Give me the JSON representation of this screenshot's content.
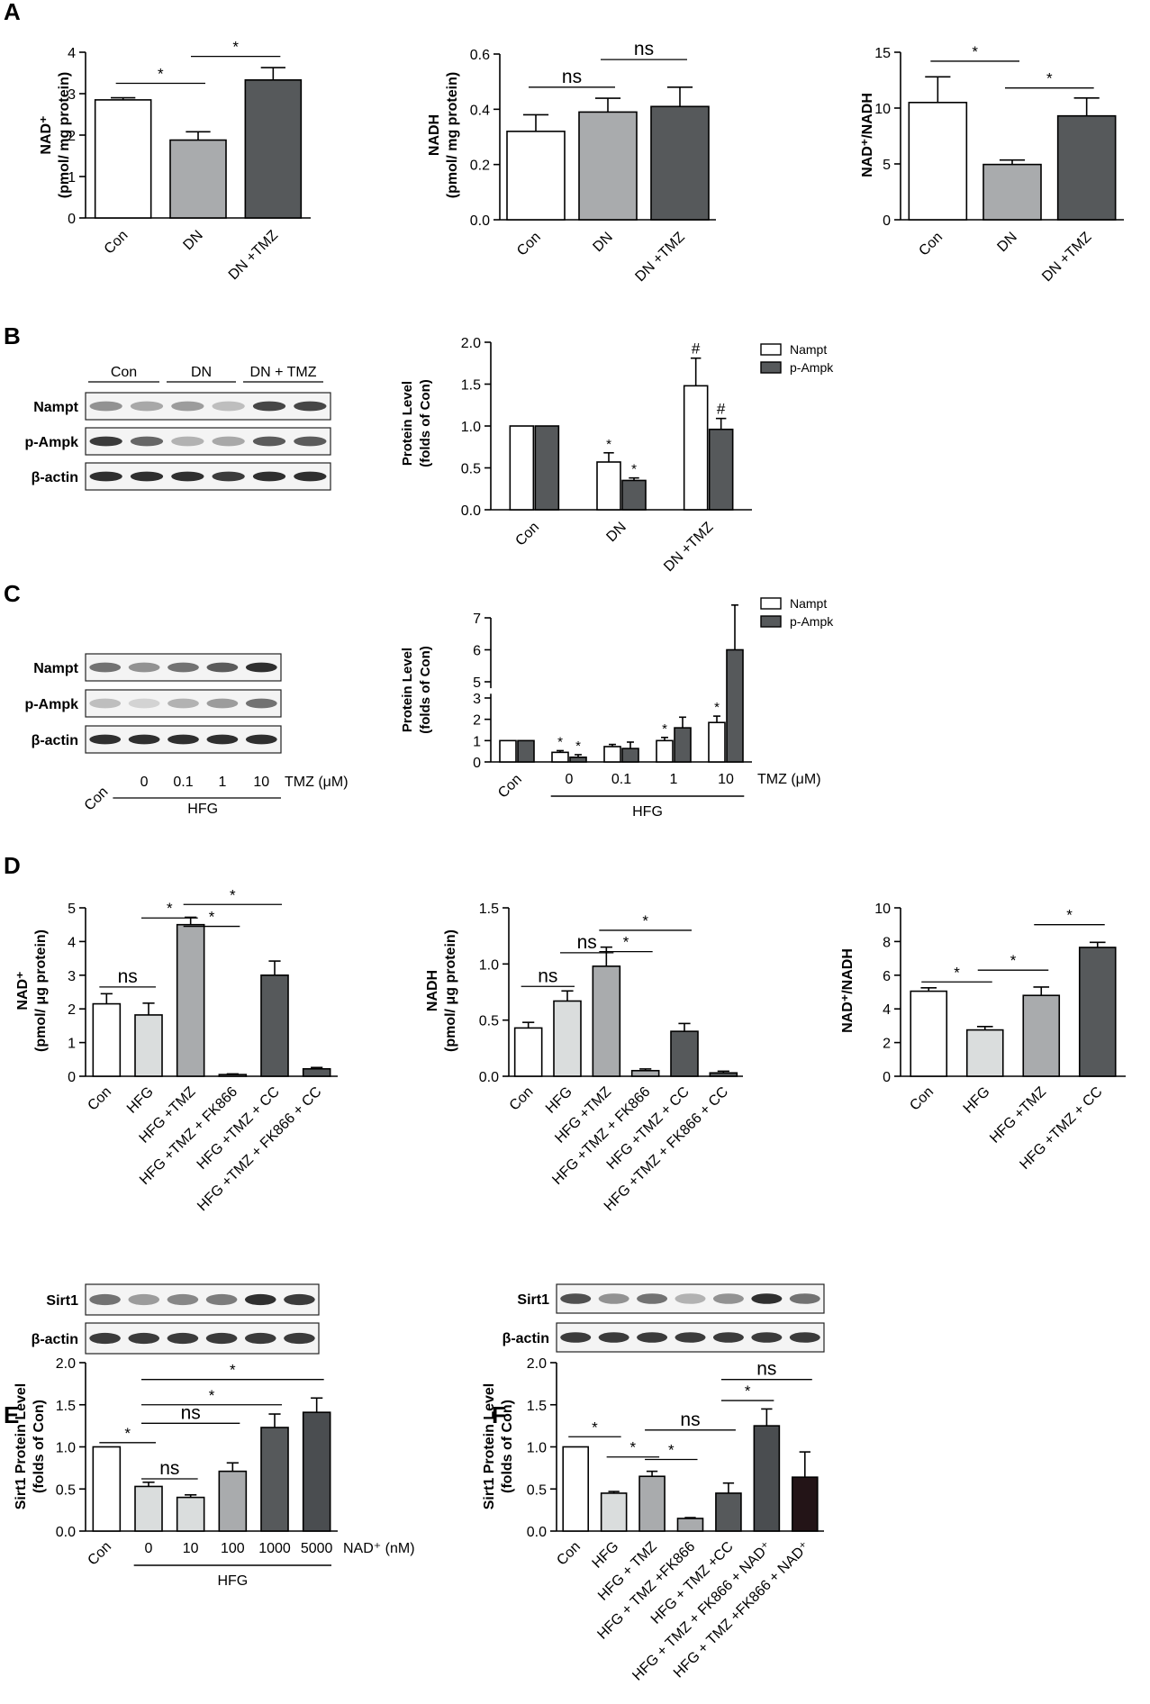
{
  "colors": {
    "white": "#ffffff",
    "light": "#dadddd",
    "mid": "#a9abad",
    "dark": "#56595b",
    "darker": "#4a4d50",
    "black": "#231417"
  },
  "panel_letters": [
    "A",
    "B",
    "C",
    "D",
    "E",
    "F"
  ],
  "blots": [
    {
      "id": "B",
      "groups": [
        "Con",
        "DN",
        "DN + TMZ"
      ],
      "rows": [
        "Nampt",
        "p-Ampk",
        "β-actin"
      ],
      "band_levels": [
        [
          0.45,
          0.35,
          0.4,
          0.25,
          0.8,
          0.8
        ],
        [
          0.85,
          0.65,
          0.3,
          0.35,
          0.7,
          0.7
        ],
        [
          0.9,
          0.9,
          0.9,
          0.85,
          0.9,
          0.9
        ]
      ]
    },
    {
      "id": "C",
      "rows": [
        "Nampt",
        "p-Ampk",
        "β-actin"
      ],
      "lanes": [
        "Con",
        "0",
        "0.1",
        "1",
        "10"
      ],
      "unit": "TMZ (μM)",
      "group": "HFG",
      "band_levels": [
        [
          0.6,
          0.45,
          0.6,
          0.7,
          0.9
        ],
        [
          0.25,
          0.15,
          0.3,
          0.4,
          0.6
        ],
        [
          0.9,
          0.9,
          0.9,
          0.9,
          0.9
        ]
      ]
    },
    {
      "id": "E",
      "rows": [
        "Sirt1",
        "β-actin"
      ],
      "band_levels": [
        [
          0.6,
          0.4,
          0.5,
          0.55,
          0.9,
          0.85
        ],
        [
          0.85,
          0.85,
          0.85,
          0.85,
          0.85,
          0.85
        ]
      ]
    },
    {
      "id": "F",
      "rows": [
        "Sirt1",
        "β-actin"
      ],
      "band_levels": [
        [
          0.75,
          0.45,
          0.6,
          0.3,
          0.45,
          0.9,
          0.6
        ],
        [
          0.85,
          0.85,
          0.85,
          0.85,
          0.85,
          0.85,
          0.85
        ]
      ]
    }
  ],
  "chart_data": [
    {
      "id": "A1",
      "type": "bar",
      "ylabel": "NAD⁺",
      "ylabel2": "(pmol/ mg protein)",
      "ylim": [
        0,
        4
      ],
      "yticks": [
        "0",
        "1",
        "2",
        "3",
        "4"
      ],
      "categories": [
        "Con",
        "DN",
        "DN +TMZ"
      ],
      "values": [
        2.85,
        1.88,
        3.33
      ],
      "errors": [
        0.05,
        0.2,
        0.3
      ],
      "colors": [
        "white",
        "mid",
        "dark"
      ],
      "sig": [
        {
          "label": "*",
          "from": 0,
          "to": 1,
          "y": 3.25
        },
        {
          "label": "*",
          "from": 1,
          "to": 2,
          "y": 3.9
        }
      ]
    },
    {
      "id": "A2",
      "type": "bar",
      "ylabel": "NADH",
      "ylabel2": "(pmol/ mg protein)",
      "ylim": [
        0,
        0.6
      ],
      "yticks": [
        "0.0",
        "0.2",
        "0.4",
        "0.6"
      ],
      "categories": [
        "Con",
        "DN",
        "DN +TMZ"
      ],
      "values": [
        0.32,
        0.39,
        0.41
      ],
      "errors": [
        0.06,
        0.05,
        0.07
      ],
      "colors": [
        "white",
        "mid",
        "dark"
      ],
      "sig": [
        {
          "label": "ns",
          "from": 0,
          "to": 1,
          "y": 0.48
        },
        {
          "label": "ns",
          "from": 1,
          "to": 2,
          "y": 0.58
        }
      ]
    },
    {
      "id": "A3",
      "type": "bar",
      "ylabel": "NAD⁺/NADH",
      "ylim": [
        0,
        15
      ],
      "yticks": [
        "0",
        "5",
        "10",
        "15"
      ],
      "categories": [
        "Con",
        "DN",
        "DN +TMZ"
      ],
      "values": [
        10.5,
        4.95,
        9.3
      ],
      "errors": [
        2.3,
        0.4,
        1.6
      ],
      "colors": [
        "white",
        "mid",
        "dark"
      ],
      "sig": [
        {
          "label": "*",
          "from": 0,
          "to": 1,
          "y": 14.2
        },
        {
          "label": "*",
          "from": 1,
          "to": 2,
          "y": 11.8
        }
      ]
    },
    {
      "id": "B",
      "type": "bar",
      "ylabel": "Protein Level",
      "ylabel2": "(folds of Con)",
      "ylim": [
        0,
        2
      ],
      "yticks": [
        "0.0",
        "0.5",
        "1.0",
        "1.5",
        "2.0"
      ],
      "categories": [
        "Con",
        "DN",
        "DN +TMZ"
      ],
      "series": [
        {
          "name": "Nampt",
          "values": [
            1.0,
            0.57,
            1.48
          ],
          "errors": [
            0,
            0.11,
            0.33
          ],
          "marks": [
            "",
            "*",
            "#"
          ],
          "color": "white"
        },
        {
          "name": "p-Ampk",
          "values": [
            1.0,
            0.35,
            0.96
          ],
          "errors": [
            0,
            0.03,
            0.13
          ],
          "marks": [
            "",
            "*",
            "#"
          ],
          "color": "dark"
        }
      ]
    },
    {
      "id": "C",
      "type": "bar",
      "ylabel": "Protein Level",
      "ylabel2": "(folds of Con)",
      "ylim": [
        0,
        7
      ],
      "yticks": [
        "0",
        "1",
        "2",
        "3",
        "5",
        "6",
        "7"
      ],
      "categories": [
        "Con",
        "0",
        "0.1",
        "1",
        "10"
      ],
      "xunit": "TMZ (μM)",
      "group": "HFG",
      "series": [
        {
          "name": "Nampt",
          "values": [
            1.0,
            0.45,
            0.72,
            1.0,
            1.85
          ],
          "errors": [
            0,
            0.08,
            0.1,
            0.15,
            0.3
          ],
          "marks": [
            "",
            "*",
            "",
            "*",
            "*"
          ],
          "color": "white"
        },
        {
          "name": "p-Ampk",
          "values": [
            1.0,
            0.22,
            0.63,
            1.6,
            6.0
          ],
          "errors": [
            0,
            0.12,
            0.3,
            0.5,
            1.4
          ],
          "marks": [
            "",
            "*",
            "",
            "",
            ""
          ],
          "color": "dark"
        }
      ]
    },
    {
      "id": "D1",
      "type": "bar",
      "ylabel": "NAD⁺",
      "ylabel2": "(pmol/ μg protein)",
      "ylim": [
        0,
        5
      ],
      "yticks": [
        "0",
        "1",
        "2",
        "3",
        "4",
        "5"
      ],
      "categories": [
        "Con",
        "HFG",
        "HFG +TMZ",
        "HFG +TMZ + FK866",
        "HFG +TMZ + CC",
        "HFG +TMZ + FK866 + CC"
      ],
      "values": [
        2.15,
        1.82,
        4.5,
        0.05,
        3.0,
        0.22
      ],
      "errors": [
        0.3,
        0.35,
        0.22,
        0.02,
        0.42,
        0.04
      ],
      "colors": [
        "white",
        "light",
        "mid",
        "mid",
        "dark",
        "dark"
      ],
      "sig": [
        {
          "label": "ns",
          "from": 0,
          "to": 1,
          "y": 2.65
        },
        {
          "label": "*",
          "from": 1,
          "to": 2,
          "y": 4.7
        },
        {
          "label": "*",
          "from": 2,
          "to": 3,
          "y": 4.45
        },
        {
          "label": "*",
          "from": 2,
          "to": 4,
          "y": 5.1
        }
      ]
    },
    {
      "id": "D2",
      "type": "bar",
      "ylabel": "NADH",
      "ylabel2": "(pmol/ μg protein)",
      "ylim": [
        0,
        1.5
      ],
      "yticks": [
        "0.0",
        "0.5",
        "1.0",
        "1.5"
      ],
      "categories": [
        "Con",
        "HFG",
        "HFG +TMZ",
        "HFG +TMZ + FK866",
        "HFG +TMZ + CC",
        "HFG +TMZ + FK866 + CC"
      ],
      "values": [
        0.43,
        0.67,
        0.98,
        0.05,
        0.4,
        0.03
      ],
      "errors": [
        0.05,
        0.09,
        0.17,
        0.015,
        0.07,
        0.015
      ],
      "colors": [
        "white",
        "light",
        "mid",
        "mid",
        "dark",
        "dark"
      ],
      "sig": [
        {
          "label": "ns",
          "from": 0,
          "to": 1,
          "y": 0.8
        },
        {
          "label": "ns",
          "from": 1,
          "to": 2,
          "y": 1.1
        },
        {
          "label": "*",
          "from": 2,
          "to": 3,
          "y": 1.11
        },
        {
          "label": "*",
          "from": 2,
          "to": 4,
          "y": 1.3
        }
      ]
    },
    {
      "id": "D3",
      "type": "bar",
      "ylabel": "NAD⁺/NADH",
      "ylim": [
        0,
        10
      ],
      "yticks": [
        "0",
        "2",
        "4",
        "6",
        "8",
        "10"
      ],
      "categories": [
        "Con",
        "HFG",
        "HFG +TMZ",
        "HFG +TMZ + CC"
      ],
      "values": [
        5.05,
        2.75,
        4.8,
        7.65
      ],
      "errors": [
        0.2,
        0.2,
        0.5,
        0.3
      ],
      "colors": [
        "white",
        "light",
        "mid",
        "dark"
      ],
      "sig": [
        {
          "label": "*",
          "from": 0,
          "to": 1,
          "y": 5.6
        },
        {
          "label": "*",
          "from": 1,
          "to": 2,
          "y": 6.3
        },
        {
          "label": "*",
          "from": 2,
          "to": 3,
          "y": 9.0
        }
      ]
    },
    {
      "id": "E",
      "type": "bar",
      "ylabel": "Sirt1 Protein Level",
      "ylabel2": "(folds of Con)",
      "ylim": [
        0,
        2
      ],
      "yticks": [
        "0.0",
        "0.5",
        "1.0",
        "1.5",
        "2.0"
      ],
      "categories": [
        "Con",
        "0",
        "10",
        "100",
        "1000",
        "5000"
      ],
      "xunit": "NAD⁺ (nM)",
      "group": "HFG",
      "values": [
        1.0,
        0.53,
        0.4,
        0.71,
        1.23,
        1.41
      ],
      "errors": [
        0,
        0.05,
        0.03,
        0.1,
        0.16,
        0.17
      ],
      "colors": [
        "white",
        "light",
        "light",
        "mid",
        "dark",
        "darker"
      ],
      "sig": [
        {
          "label": "*",
          "from": 0,
          "to": 1,
          "y": 1.05
        },
        {
          "label": "ns",
          "from": 1,
          "to": 2,
          "y": 0.62
        },
        {
          "label": "ns",
          "from": 1,
          "to": 3,
          "y": 1.28
        },
        {
          "label": "*",
          "from": 1,
          "to": 4,
          "y": 1.5
        },
        {
          "label": "*",
          "from": 1,
          "to": 5,
          "y": 1.8
        }
      ]
    },
    {
      "id": "F",
      "type": "bar",
      "ylabel": "Sirt1 Protein Level",
      "ylabel2": "(folds of Con)",
      "ylim": [
        0,
        2
      ],
      "yticks": [
        "0.0",
        "0.5",
        "1.0",
        "1.5",
        "2.0"
      ],
      "categories": [
        "Con",
        "HFG",
        "HFG + TMZ",
        "HFG + TMZ +FK866",
        "HFG + TMZ +CC",
        "HFG + TMZ + FK866 + NAD⁺",
        "HFG + TMZ +FK866 + NAD⁺"
      ],
      "values": [
        1.0,
        0.45,
        0.65,
        0.15,
        0.45,
        1.25,
        0.64
      ],
      "errors": [
        0,
        0.02,
        0.06,
        0.01,
        0.12,
        0.2,
        0.3
      ],
      "colors": [
        "white",
        "light",
        "mid",
        "mid",
        "dark",
        "darker",
        "black"
      ],
      "sig": [
        {
          "label": "*",
          "from": 0,
          "to": 1,
          "y": 1.12
        },
        {
          "label": "*",
          "from": 1,
          "to": 2,
          "y": 0.88
        },
        {
          "label": "*",
          "from": 2,
          "to": 3,
          "y": 0.85
        },
        {
          "label": "ns",
          "from": 2,
          "to": 4,
          "y": 1.2
        },
        {
          "label": "*",
          "from": 4,
          "to": 5,
          "y": 1.55
        },
        {
          "label": "ns",
          "from": 4,
          "to": 6,
          "y": 1.8
        }
      ]
    }
  ]
}
